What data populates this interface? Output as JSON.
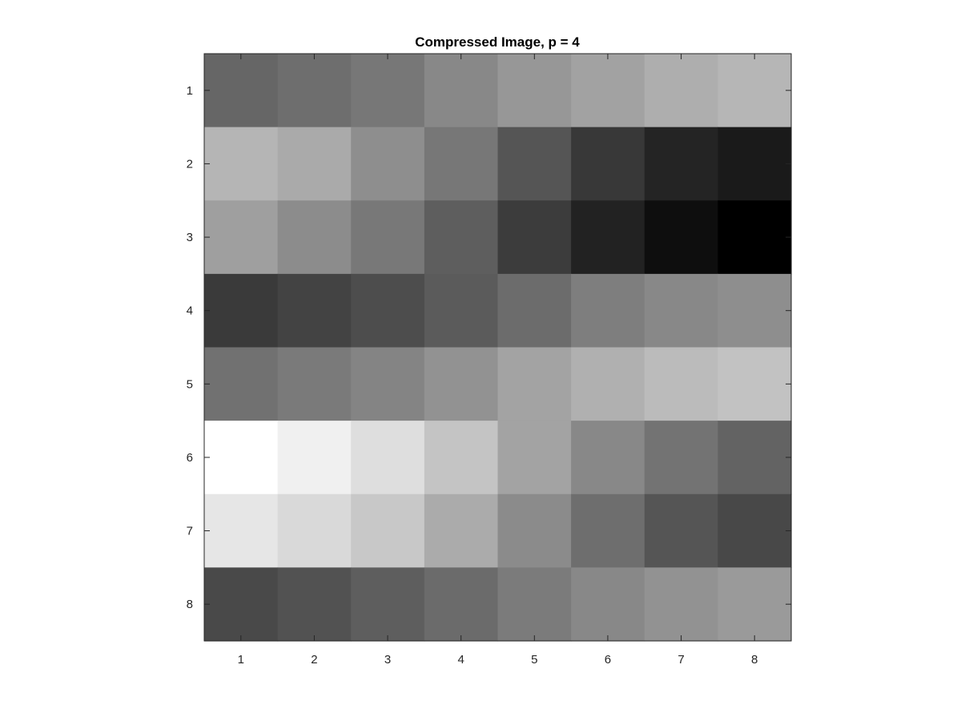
{
  "chart_data": {
    "type": "heatmap",
    "title": "Compressed Image, p = 4",
    "colormap": "gray",
    "xlabel": "",
    "ylabel": "",
    "x_ticks": [
      "1",
      "2",
      "3",
      "4",
      "5",
      "6",
      "7",
      "8"
    ],
    "y_ticks": [
      "1",
      "2",
      "3",
      "4",
      "5",
      "6",
      "7",
      "8"
    ],
    "xlim": [
      0.5,
      8.5
    ],
    "ylim": [
      0.5,
      8.5
    ],
    "y_direction": "reverse",
    "grid": false,
    "value_units": "gray intensity (0 = black, 255 = white)",
    "values": [
      [
        102,
        110,
        119,
        136,
        151,
        162,
        174,
        182
      ],
      [
        181,
        170,
        142,
        119,
        85,
        56,
        36,
        26
      ],
      [
        159,
        140,
        120,
        94,
        60,
        34,
        14,
        0
      ],
      [
        58,
        67,
        77,
        91,
        108,
        126,
        136,
        142
      ],
      [
        113,
        122,
        132,
        146,
        163,
        176,
        187,
        194
      ],
      [
        255,
        240,
        222,
        196,
        163,
        136,
        115,
        99
      ],
      [
        230,
        217,
        200,
        171,
        139,
        110,
        85,
        72
      ],
      [
        73,
        82,
        94,
        107,
        123,
        136,
        146,
        154
      ]
    ]
  }
}
